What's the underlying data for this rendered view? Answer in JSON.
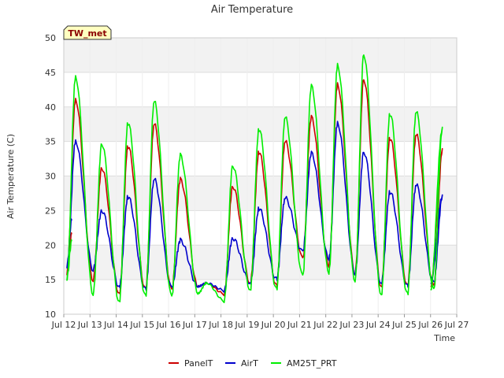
{
  "chart_data": {
    "type": "line",
    "title": "Air Temperature",
    "xlabel": "Time",
    "ylabel": "Air Temperature (C)",
    "ylim": [
      10,
      50
    ],
    "y_ticks": [
      10,
      15,
      20,
      25,
      30,
      35,
      40,
      45,
      50
    ],
    "xlim": [
      12,
      27
    ],
    "x_ticks": [
      12,
      13,
      14,
      15,
      16,
      17,
      18,
      19,
      20,
      21,
      22,
      23,
      24,
      25,
      26,
      27
    ],
    "x_tick_labels": [
      "Jul 12",
      "Jul 13",
      "Jul 14",
      "Jul 15",
      "Jul 16",
      "Jul 17",
      "Jul 18",
      "Jul 19",
      "Jul 20",
      "Jul 21",
      "Jul 22",
      "Jul 23",
      "Jul 24",
      "Jul 25",
      "Jul 26",
      "Jul 27"
    ],
    "grid": true,
    "legend_position": "bottom",
    "badge": "TW_met",
    "x_start": 12.3,
    "x_end": 26.0,
    "day_peak_offset": 0.45,
    "series": [
      {
        "name": "PanelT",
        "color": "#cc0000",
        "start_value": 21.5,
        "daily_max": [
          41.0,
          31.2,
          34.3,
          37.5,
          29.5,
          14.5,
          28.5,
          33.5,
          35.0,
          38.5,
          43.2,
          44.0,
          35.5,
          36.0,
          33.7
        ],
        "daily_min": [
          16.0,
          15.0,
          13.0,
          13.5,
          13.5,
          14.0,
          13.0,
          14.5,
          14.0,
          18.0,
          17.0,
          16.0,
          14.0,
          14.0,
          14.0
        ]
      },
      {
        "name": "AirT",
        "color": "#0000cc",
        "start_value": 23.5,
        "daily_max": [
          35.0,
          25.0,
          27.0,
          29.5,
          20.7,
          14.5,
          21.0,
          25.3,
          26.8,
          33.3,
          37.6,
          33.5,
          27.7,
          28.7,
          27.0
        ],
        "daily_min": [
          17.0,
          16.5,
          14.0,
          13.5,
          13.8,
          14.0,
          13.5,
          14.5,
          15.0,
          19.0,
          18.0,
          16.0,
          14.5,
          14.0,
          14.5
        ]
      },
      {
        "name": "AM25T_PRT",
        "color": "#00ee00",
        "start_value": 20.5,
        "daily_max": [
          44.3,
          34.7,
          37.7,
          40.8,
          33.0,
          14.5,
          31.5,
          36.8,
          38.5,
          43.0,
          46.0,
          47.6,
          39.0,
          39.3,
          36.8
        ],
        "daily_min": [
          15.2,
          13.0,
          11.8,
          12.5,
          12.5,
          13.0,
          12.0,
          13.5,
          13.5,
          15.5,
          16.0,
          15.0,
          12.8,
          12.8,
          13.5
        ]
      }
    ]
  }
}
